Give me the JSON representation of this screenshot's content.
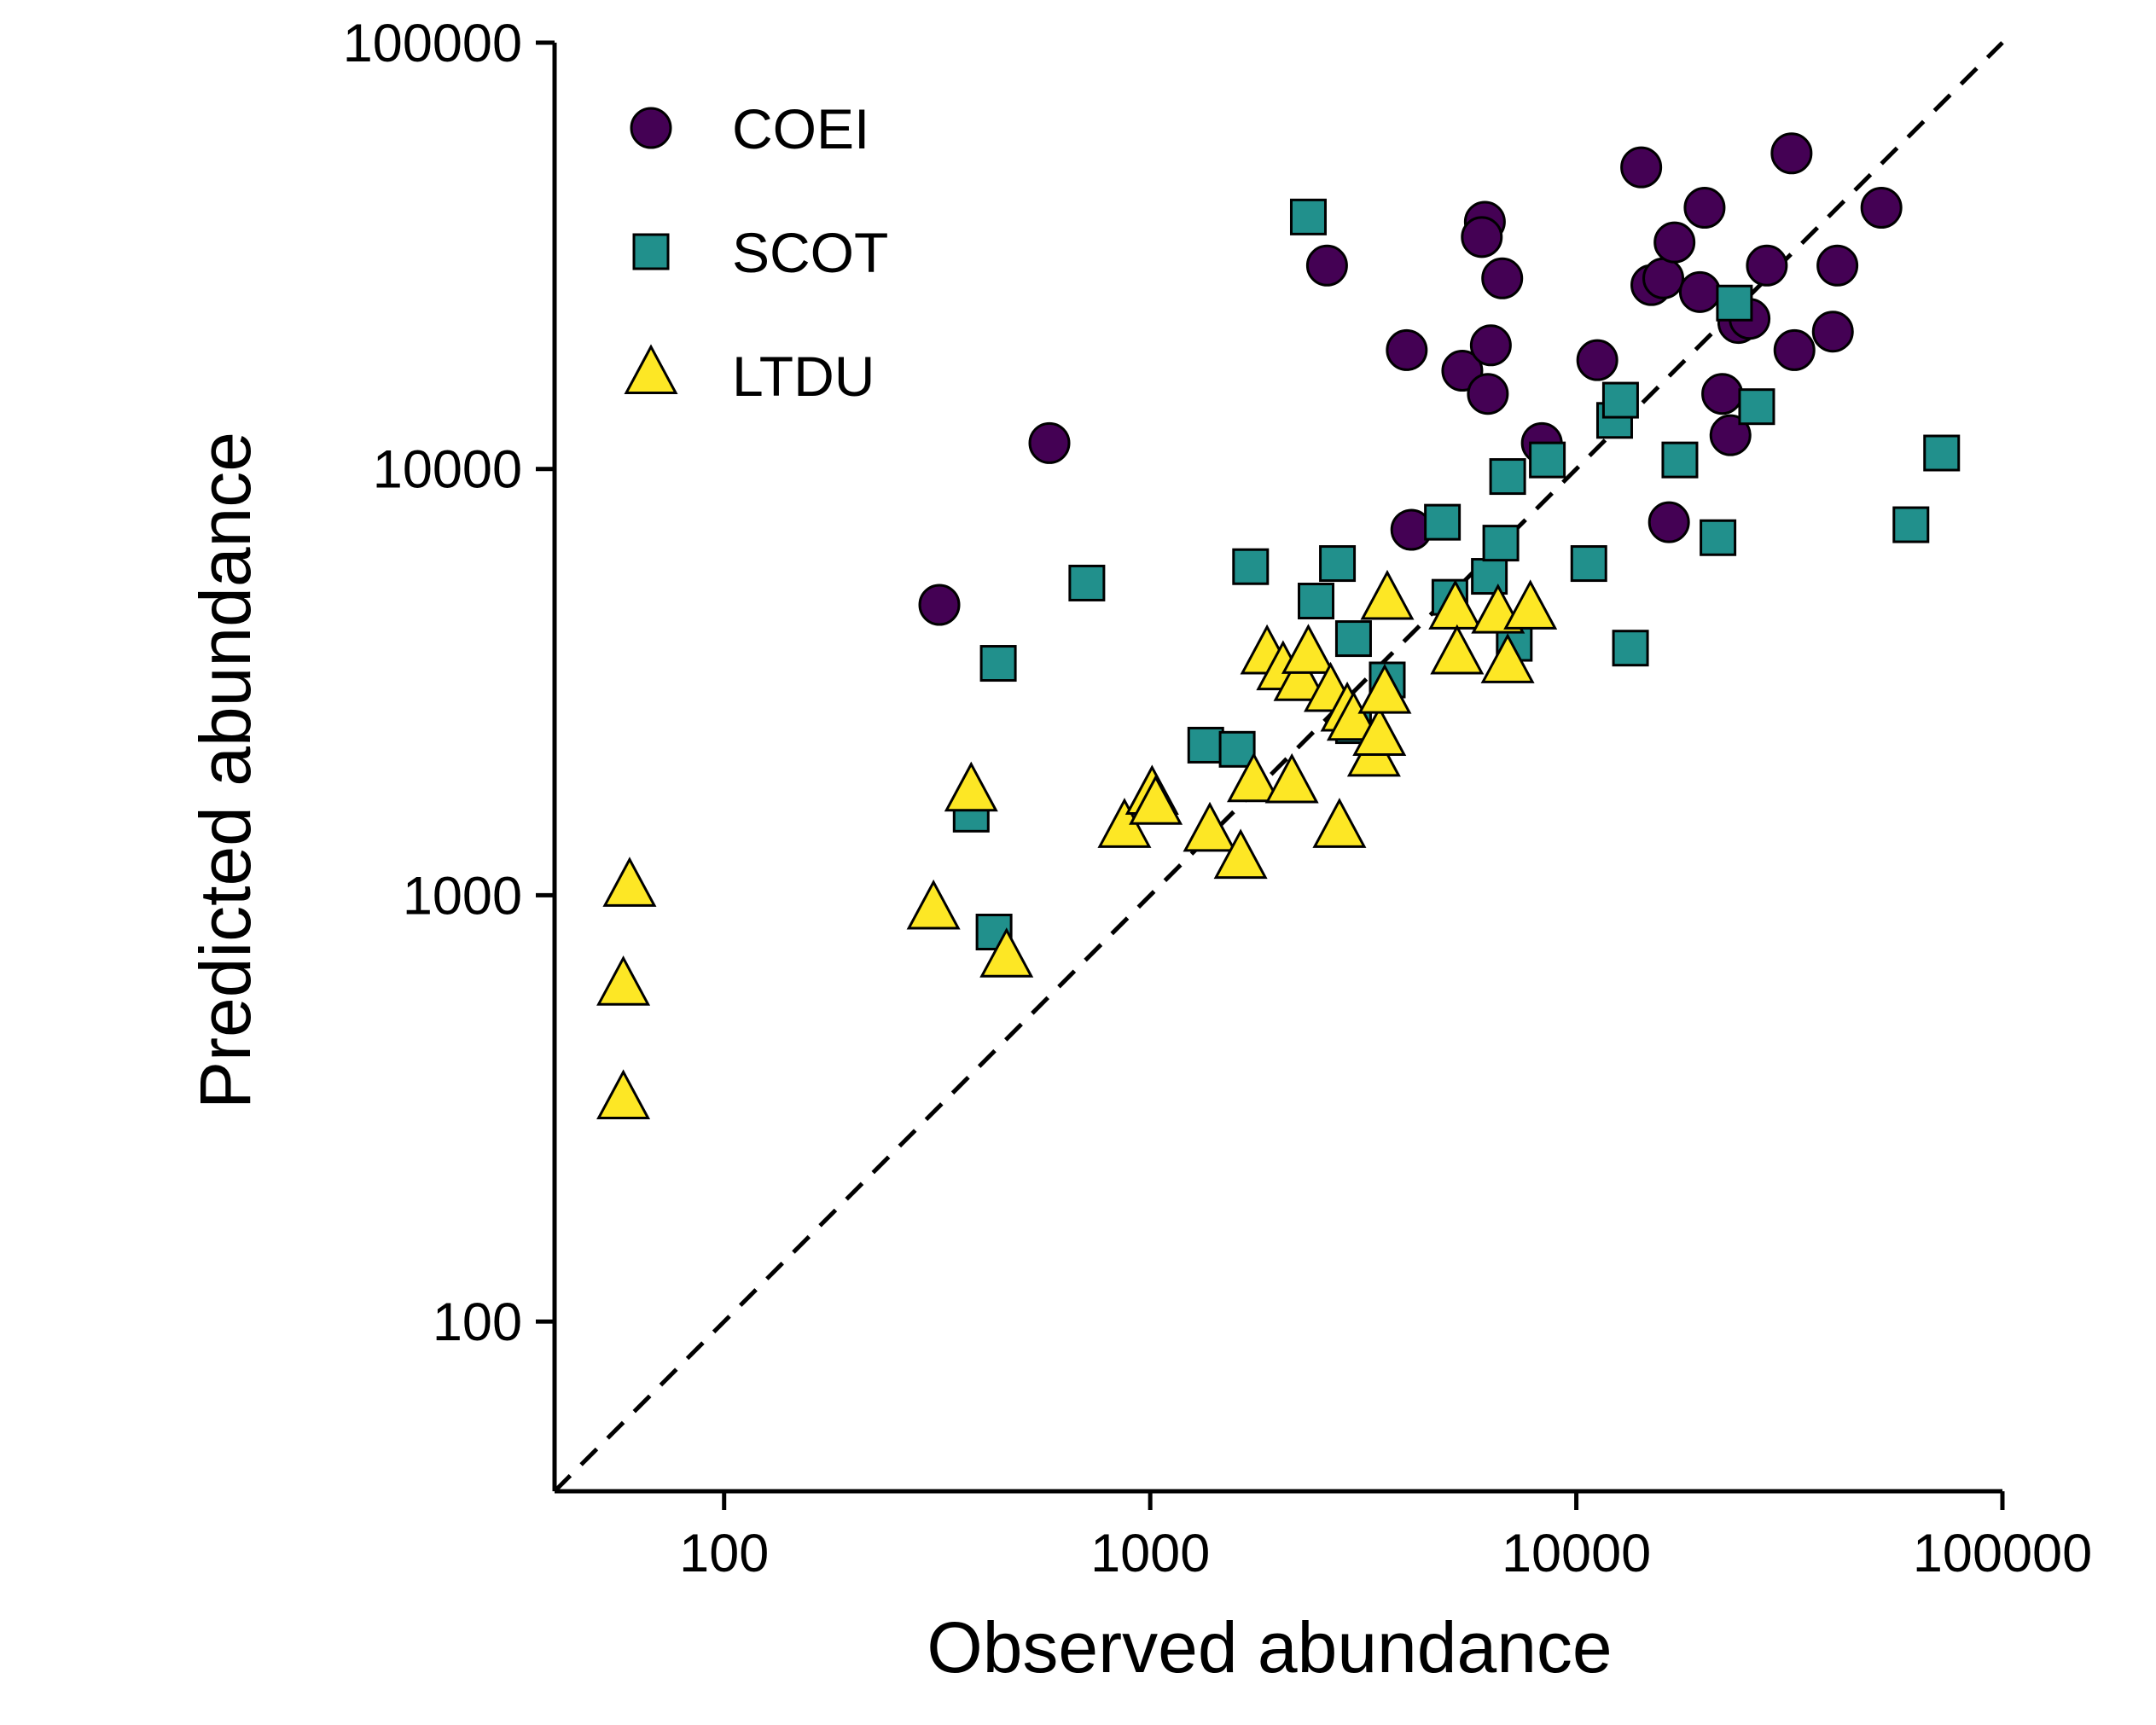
{
  "chart_data": {
    "type": "scatter",
    "xlabel": "Observed abundance",
    "ylabel": "Predicted abundance",
    "x_scale": "log",
    "y_scale": "log",
    "xlim": [
      40,
      100000
    ],
    "ylim": [
      40,
      100000
    ],
    "x_ticks": [
      {
        "value": 100,
        "label": "100"
      },
      {
        "value": 1000,
        "label": "1000"
      },
      {
        "value": 10000,
        "label": "10000"
      },
      {
        "value": 100000,
        "label": "100000"
      }
    ],
    "y_ticks": [
      {
        "value": 100,
        "label": "100"
      },
      {
        "value": 1000,
        "label": "1000"
      },
      {
        "value": 10000,
        "label": "10000"
      },
      {
        "value": 100000,
        "label": "100000"
      }
    ],
    "reference_line": {
      "style": "dashed",
      "relation": "y = x"
    },
    "legend_position": "top-left",
    "grid": false,
    "series": [
      {
        "name": "COEI",
        "marker": "circle",
        "color": "#440154",
        "points": [
          [
            320,
            4800
          ],
          [
            580,
            11500
          ],
          [
            2600,
            30000
          ],
          [
            4000,
            19000
          ],
          [
            4100,
            7200
          ],
          [
            5400,
            17000
          ],
          [
            6100,
            38000
          ],
          [
            6000,
            35000
          ],
          [
            6300,
            19500
          ],
          [
            6200,
            15000
          ],
          [
            6700,
            28000
          ],
          [
            8300,
            11500
          ],
          [
            11200,
            18000
          ],
          [
            14200,
            51000
          ],
          [
            15000,
            27000
          ],
          [
            16000,
            28000
          ],
          [
            16500,
            7500
          ],
          [
            17000,
            34000
          ],
          [
            19500,
            26000
          ],
          [
            20000,
            41000
          ],
          [
            22000,
            15000
          ],
          [
            23000,
            12000
          ],
          [
            24000,
            22000
          ],
          [
            25500,
            22500
          ],
          [
            28000,
            30000
          ],
          [
            32000,
            55000
          ],
          [
            32500,
            19000
          ],
          [
            40000,
            21000
          ],
          [
            41000,
            30000
          ],
          [
            52000,
            41000
          ]
        ]
      },
      {
        "name": "SCOT",
        "marker": "square",
        "color": "#21908C",
        "points": [
          [
            380,
            1550
          ],
          [
            430,
            820
          ],
          [
            440,
            3500
          ],
          [
            710,
            5400
          ],
          [
            1350,
            2250
          ],
          [
            1600,
            2200
          ],
          [
            1720,
            5900
          ],
          [
            2350,
            39000
          ],
          [
            2450,
            4900
          ],
          [
            2750,
            6000
          ],
          [
            3000,
            2500
          ],
          [
            3000,
            4000
          ],
          [
            3600,
            3200
          ],
          [
            4850,
            7500
          ],
          [
            5050,
            5000
          ],
          [
            6250,
            5600
          ],
          [
            6650,
            6700
          ],
          [
            6900,
            9600
          ],
          [
            7150,
            3900
          ],
          [
            8550,
            10500
          ],
          [
            10700,
            6000
          ],
          [
            12300,
            13000
          ],
          [
            12700,
            14500
          ],
          [
            13400,
            3800
          ],
          [
            17500,
            10500
          ],
          [
            21500,
            6900
          ],
          [
            23500,
            24500
          ],
          [
            26500,
            14000
          ],
          [
            61000,
            7400
          ],
          [
            72000,
            10900
          ]
        ]
      },
      {
        "name": "LTDU",
        "marker": "triangle",
        "color": "#FDE725",
        "points": [
          [
            58,
            330
          ],
          [
            58,
            610
          ],
          [
            60,
            1040
          ],
          [
            310,
            920
          ],
          [
            380,
            1740
          ],
          [
            460,
            710
          ],
          [
            870,
            1430
          ],
          [
            1010,
            1710
          ],
          [
            1030,
            1620
          ],
          [
            1380,
            1400
          ],
          [
            1630,
            1210
          ],
          [
            1750,
            1830
          ],
          [
            1880,
            3650
          ],
          [
            2050,
            3350
          ],
          [
            2150,
            1820
          ],
          [
            2250,
            3160
          ],
          [
            2350,
            3660
          ],
          [
            2650,
            2980
          ],
          [
            2780,
            1430
          ],
          [
            2900,
            2680
          ],
          [
            3000,
            2550
          ],
          [
            3350,
            2100
          ],
          [
            3450,
            2350
          ],
          [
            3550,
            2950
          ],
          [
            3600,
            4900
          ],
          [
            5200,
            4650
          ],
          [
            5250,
            3650
          ],
          [
            6550,
            4550
          ],
          [
            6900,
            3480
          ],
          [
            7800,
            4650
          ]
        ]
      }
    ]
  }
}
